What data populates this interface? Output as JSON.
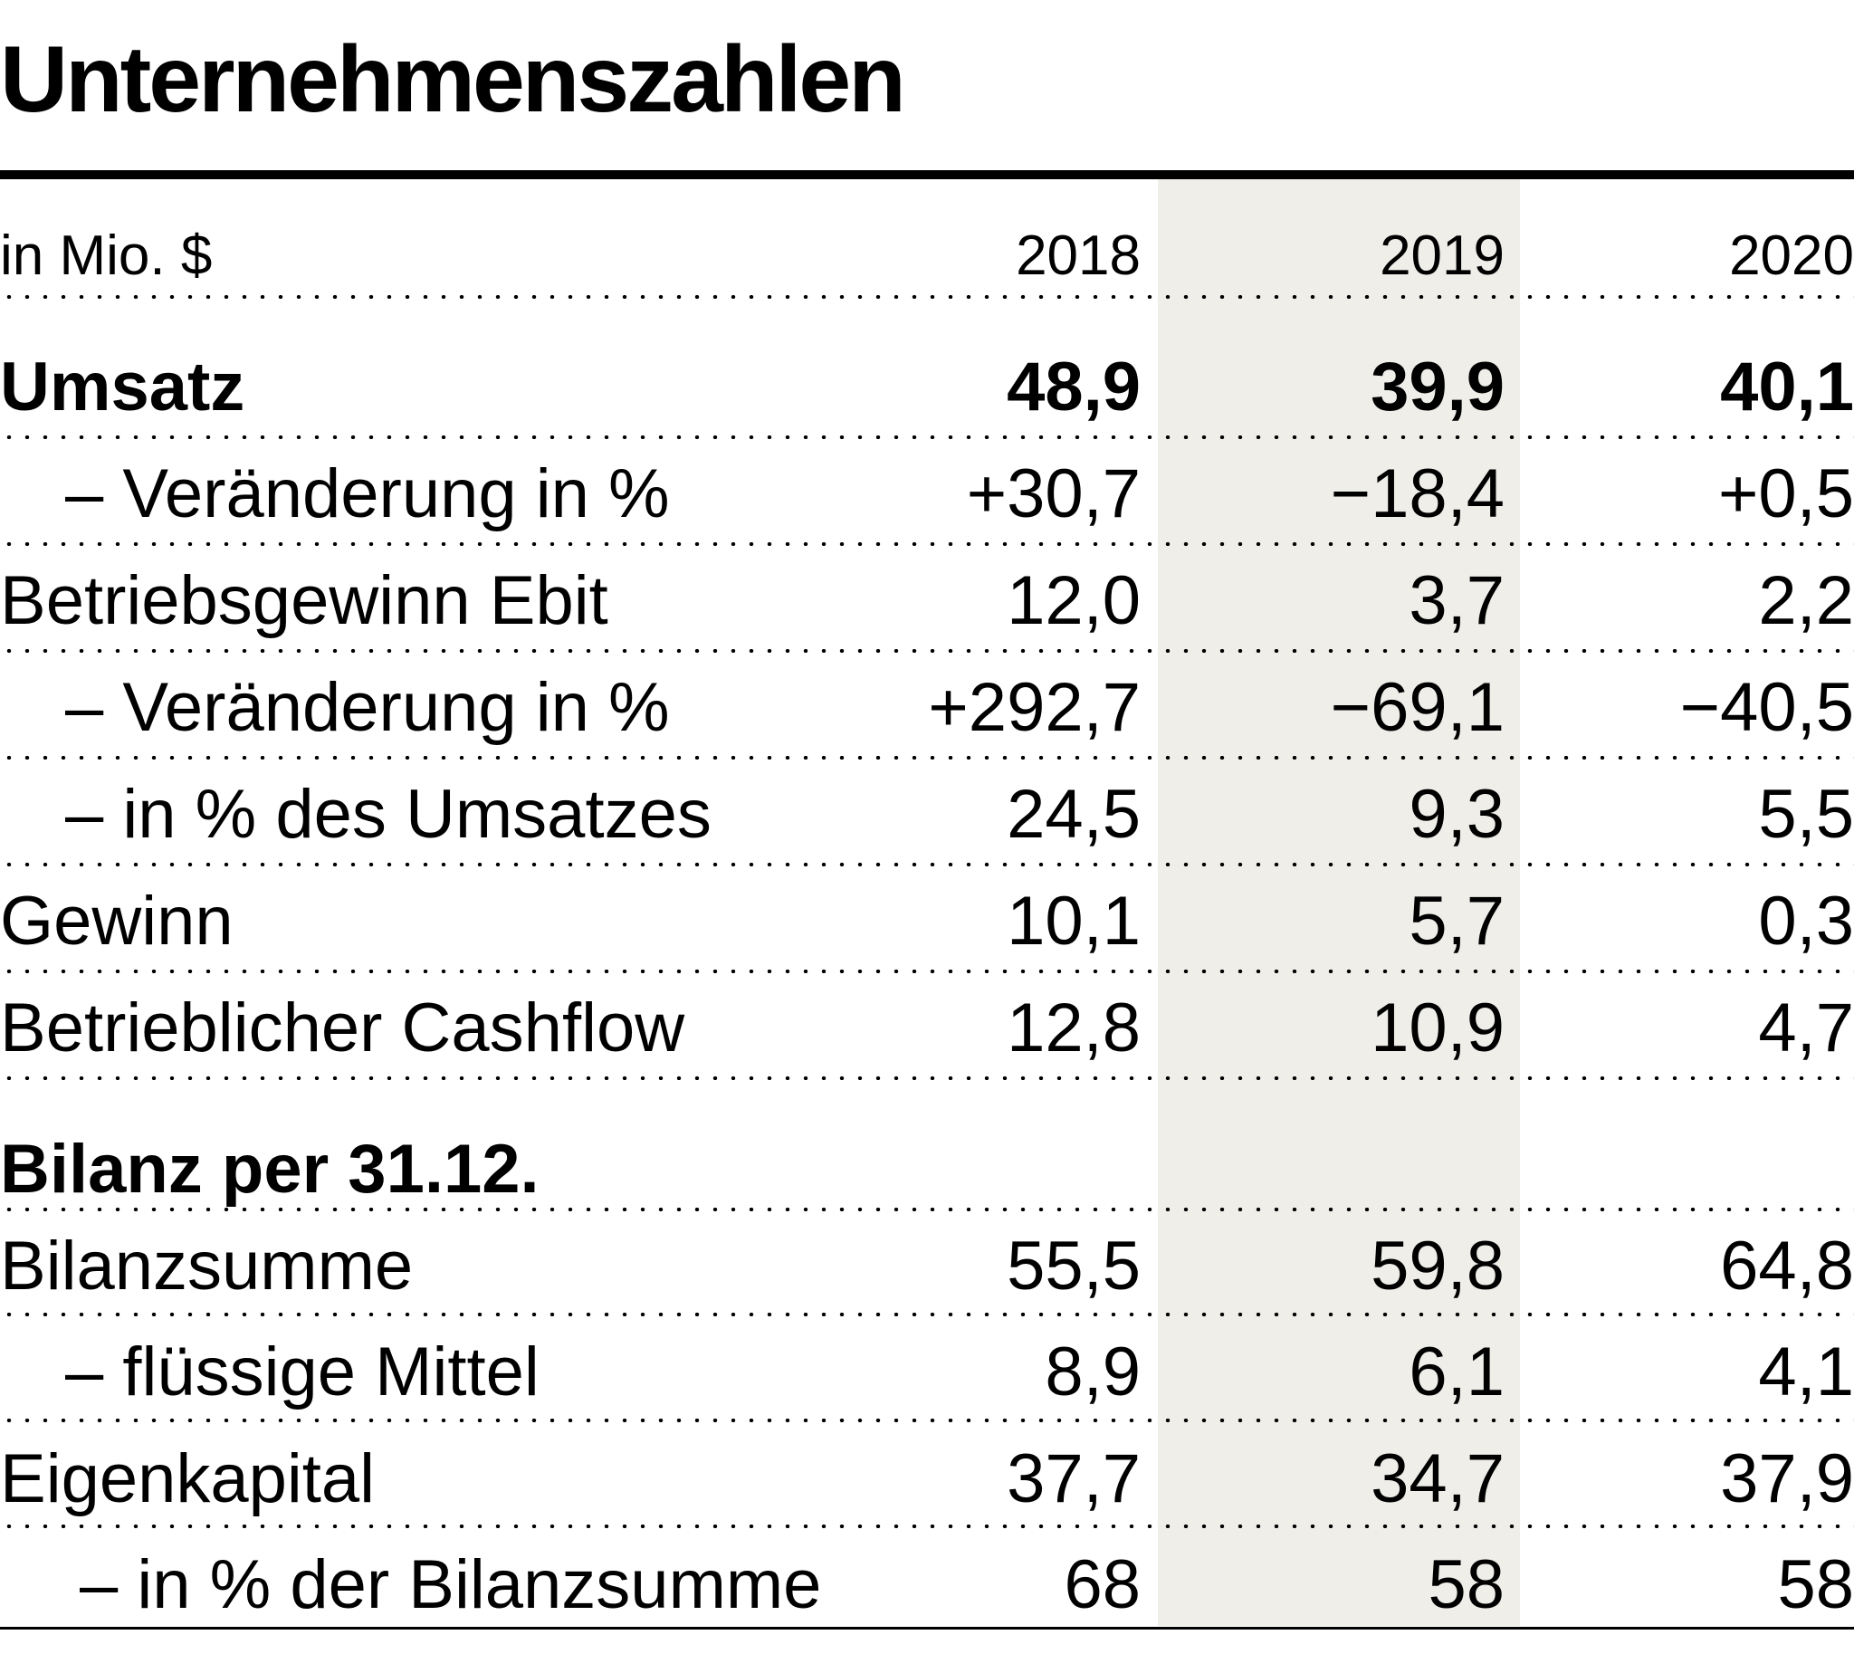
{
  "chart_data": {
    "type": "table",
    "title": "Unternehmenszahlen",
    "unit_label": "in Mio. $",
    "columns": [
      "2018",
      "2019",
      "2020"
    ],
    "rows": [
      {
        "label": "Umsatz",
        "values": [
          "48,9",
          "39,9",
          "40,1"
        ]
      },
      {
        "label": "– Veränderung in %",
        "values": [
          "+30,7",
          "−18,4",
          "+0,5"
        ]
      },
      {
        "label": "Betriebsgewinn Ebit",
        "values": [
          "12,0",
          "3,7",
          "2,2"
        ]
      },
      {
        "label": "– Veränderung in %",
        "values": [
          "+292,7",
          "−69,1",
          "−40,5"
        ]
      },
      {
        "label": "– in % des Umsatzes",
        "values": [
          "24,5",
          "9,3",
          "5,5"
        ]
      },
      {
        "label": "Gewinn",
        "values": [
          "10,1",
          "5,7",
          "0,3"
        ]
      },
      {
        "label": "Betrieblicher Cashflow",
        "values": [
          "12,8",
          "10,9",
          "4,7"
        ]
      },
      {
        "label": "Bilanz per 31.12.",
        "values": []
      },
      {
        "label": "Bilanzsumme",
        "values": [
          "55,5",
          "59,8",
          "64,8"
        ]
      },
      {
        "label": "– flüssige Mittel",
        "values": [
          "8,9",
          "6,1",
          "4,1"
        ]
      },
      {
        "label": "Eigenkapital",
        "values": [
          "37,7",
          "34,7",
          "37,9"
        ]
      },
      {
        "label": "– in % der Bilanzsumme",
        "values": [
          "68",
          "58",
          "58"
        ]
      }
    ],
    "highlighted_column": "2019"
  }
}
